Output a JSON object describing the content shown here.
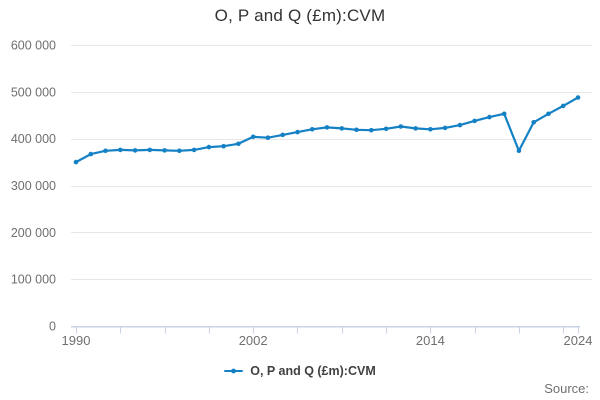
{
  "header": {
    "title": "O, P and Q (£m):CVM"
  },
  "legend": {
    "label": "O, P and Q (£m):CVM"
  },
  "footer": {
    "source": "Source:"
  },
  "colors": {
    "series": "#1581c5",
    "grid": "#e7e7e7",
    "axis": "#c9d2e6",
    "text_muted": "#6f6f6f",
    "text_dark": "#333333"
  },
  "chart_data": {
    "type": "line",
    "title": "O, P and Q (£m):CVM",
    "xlabel": "",
    "ylabel": "",
    "x": [
      1990,
      1991,
      1992,
      1993,
      1994,
      1995,
      1996,
      1997,
      1998,
      1999,
      2000,
      2001,
      2002,
      2003,
      2004,
      2005,
      2006,
      2007,
      2008,
      2009,
      2010,
      2011,
      2012,
      2013,
      2014,
      2015,
      2016,
      2017,
      2018,
      2019,
      2020,
      2021,
      2022,
      2023,
      2024
    ],
    "series": [
      {
        "name": "O, P and Q (£m):CVM",
        "values": [
          350000,
          367000,
          374000,
          376000,
          375000,
          376000,
          375000,
          374000,
          376000,
          382000,
          384000,
          389000,
          404000,
          402000,
          408000,
          414000,
          420000,
          424000,
          422000,
          419000,
          418000,
          421000,
          426000,
          422000,
          420000,
          423000,
          429000,
          438000,
          446000,
          453000,
          374000,
          435000,
          453000,
          470000,
          488000
        ]
      }
    ],
    "ylim": [
      0,
      600000
    ],
    "ytick_step": 100000,
    "ytick_labels": [
      "0",
      "100 000",
      "200 000",
      "300 000",
      "400 000",
      "500 000",
      "600 000"
    ],
    "xtick_labeled_years": [
      1990,
      2002,
      2014,
      2024
    ],
    "xtick_years": [
      1990,
      1993,
      1996,
      1999,
      2002,
      2005,
      2008,
      2011,
      2014,
      2017,
      2020,
      2023,
      2024
    ],
    "grid": "horizontal",
    "legend_position": "bottom",
    "marker": "circle"
  }
}
